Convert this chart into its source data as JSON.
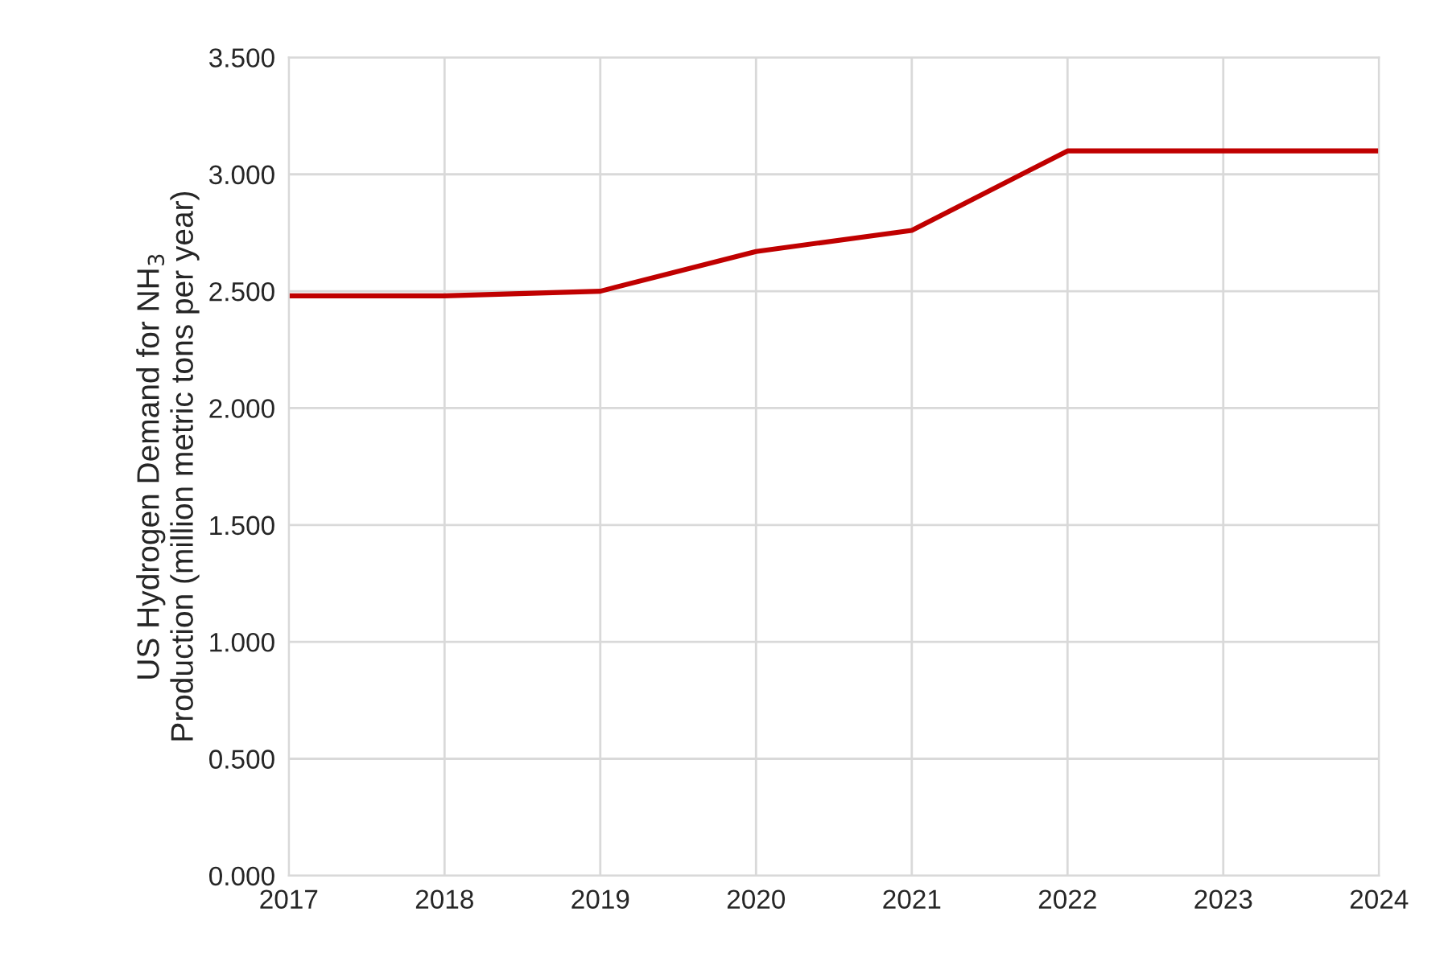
{
  "chart_data": {
    "type": "line",
    "ylabel": "US Hydrogen Demand for NH$_{3}$\nProduction (million metric tons per year)",
    "x": [
      2017,
      2018,
      2019,
      2020,
      2021,
      2022,
      2023,
      2024
    ],
    "series": [
      {
        "color": "#c00000",
        "values": [
          2.48,
          2.48,
          2.5,
          2.67,
          2.76,
          3.1,
          3.1,
          3.1
        ]
      }
    ],
    "xlim": [
      2017,
      2024
    ],
    "xticks": [
      2017,
      2018,
      2019,
      2020,
      2021,
      2022,
      2023,
      2024
    ],
    "ylim": [
      0,
      3.5
    ],
    "yticks": [
      {
        "value": 0,
        "label": "0.000"
      },
      {
        "value": 0.5,
        "label": "0.500"
      },
      {
        "value": 1,
        "label": "1.000"
      },
      {
        "value": 1.5,
        "label": "1.500"
      },
      {
        "value": 2,
        "label": "2.000"
      },
      {
        "value": 2.5,
        "label": "2.500"
      },
      {
        "value": 3,
        "label": "3.000"
      },
      {
        "value": 3.5,
        "label": "3.500"
      }
    ],
    "grid": true
  }
}
